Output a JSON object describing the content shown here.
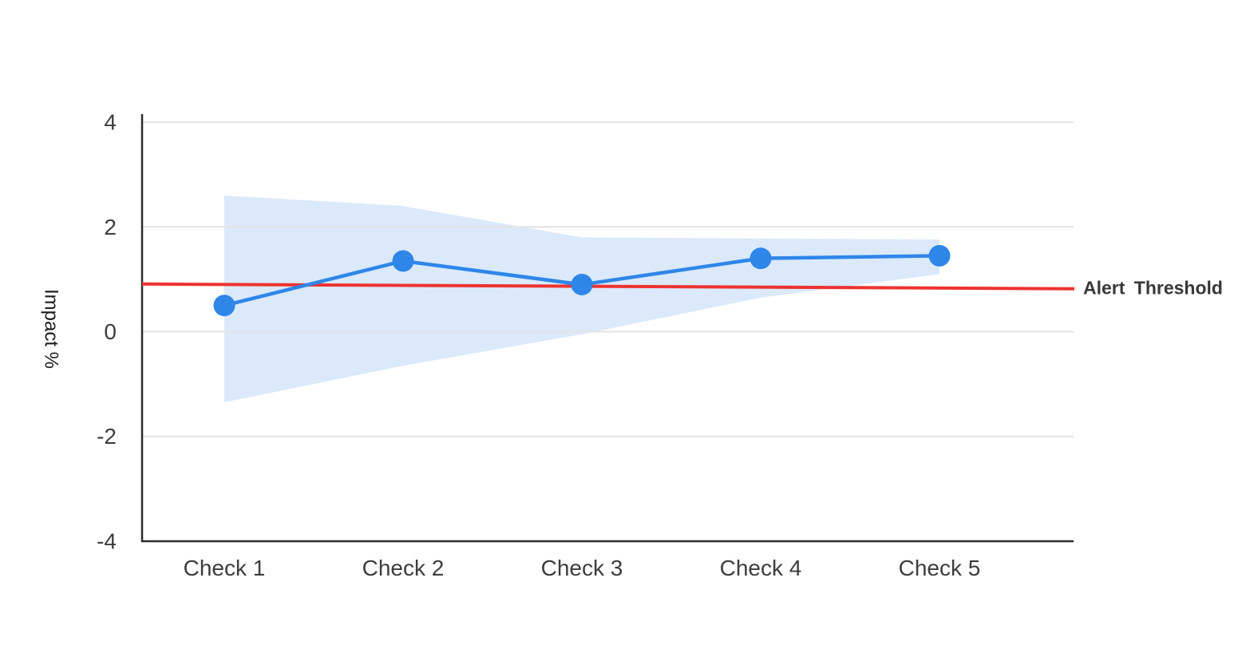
{
  "chart_data": {
    "type": "line",
    "categories": [
      "Check 1",
      "Check 2",
      "Check 3",
      "Check 4",
      "Check 5"
    ],
    "series": [
      {
        "name": "Impact %",
        "values": [
          0.5,
          1.35,
          0.9,
          1.4,
          1.45
        ],
        "color": "#2e86e8",
        "marker": "circle"
      }
    ],
    "confidence_band": {
      "upper": [
        2.6,
        2.4,
        1.8,
        1.78,
        1.76
      ],
      "lower": [
        -1.35,
        -0.65,
        -0.05,
        0.65,
        1.1
      ],
      "color": "#dbe9fb"
    },
    "threshold": {
      "label": "Alert Threshold",
      "start_value": 0.91,
      "end_value": 0.82,
      "color": "#ed3330"
    },
    "title": "",
    "xlabel": "",
    "ylabel": "Impact %",
    "yticks": [
      "4",
      "2",
      "0",
      "-2",
      "-4"
    ],
    "ytick_values": [
      4,
      2,
      0,
      -2,
      -4
    ],
    "ylim": [
      -4,
      4
    ],
    "grid": true,
    "legend": "none",
    "colors": {
      "axis": "#2d2d2d",
      "grid": "#e4e4e4",
      "tick_text": "#3d3d3d",
      "background": "#ffffff"
    }
  }
}
